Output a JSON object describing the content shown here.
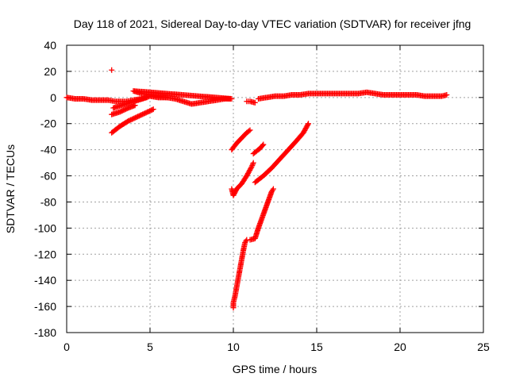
{
  "chart_data": {
    "type": "scatter",
    "title": "Day 118 of 2021, Sidereal Day-to-day VTEC variation (SDTVAR) for receiver jfng",
    "xlabel": "GPS time / hours",
    "ylabel": "SDTVAR / TECUs",
    "xlim": [
      0,
      25
    ],
    "ylim": [
      -180,
      40
    ],
    "x_ticks": [
      "0",
      "5",
      "10",
      "15",
      "20",
      "25"
    ],
    "y_ticks": [
      "40",
      "20",
      "0",
      "-20",
      "-40",
      "-60",
      "-80",
      "-100",
      "-120",
      "-140",
      "-160",
      "-180"
    ],
    "grid": true,
    "marker": "+",
    "color": "#ff0000",
    "series": [
      {
        "values": [
          [
            0.0,
            0
          ],
          [
            0.5,
            -1
          ],
          [
            1.0,
            -1
          ],
          [
            1.5,
            -2
          ],
          [
            2.0,
            -2
          ],
          [
            2.5,
            -2
          ],
          [
            2.9,
            -3
          ],
          [
            3.2,
            -3
          ],
          [
            3.6,
            -3
          ],
          [
            4.0,
            -2
          ],
          [
            4.5,
            -1
          ],
          [
            5.0,
            1
          ],
          [
            5.5,
            0
          ],
          [
            6.0,
            0
          ],
          [
            6.5,
            -1
          ],
          [
            7.0,
            -3
          ],
          [
            7.5,
            -5
          ],
          [
            8.0,
            -4
          ],
          [
            8.5,
            -3
          ],
          [
            9.0,
            -2
          ],
          [
            9.5,
            -1
          ],
          [
            9.9,
            -1
          ],
          [
            4.0,
            5
          ],
          [
            4.5,
            3
          ],
          [
            5.0,
            2
          ],
          [
            5.5,
            1
          ],
          [
            6.0,
            0
          ]
        ]
      },
      {
        "values": [
          [
            2.7,
            21
          ]
        ]
      },
      {
        "values": [
          [
            2.7,
            -13
          ],
          [
            3.2,
            -11
          ],
          [
            3.7,
            -8
          ],
          [
            4.1,
            -6
          ]
        ]
      },
      {
        "values": [
          [
            2.8,
            -8
          ],
          [
            3.3,
            -6
          ],
          [
            3.8,
            -4
          ],
          [
            4.3,
            -2
          ],
          [
            4.8,
            0
          ]
        ]
      },
      {
        "values": [
          [
            2.7,
            -27
          ],
          [
            3.2,
            -22
          ],
          [
            3.7,
            -18
          ],
          [
            4.2,
            -15
          ],
          [
            4.7,
            -12
          ],
          [
            5.2,
            -9
          ]
        ]
      },
      {
        "values": [
          [
            10.8,
            -3
          ],
          [
            11.0,
            -3
          ],
          [
            11.3,
            -4
          ]
        ]
      },
      {
        "values": [
          [
            11.5,
            -1
          ],
          [
            12.0,
            0
          ],
          [
            12.5,
            1
          ],
          [
            13.0,
            1
          ],
          [
            13.5,
            2
          ],
          [
            14.0,
            2
          ],
          [
            14.5,
            3
          ],
          [
            15.0,
            3
          ],
          [
            15.5,
            3
          ],
          [
            16.0,
            3
          ],
          [
            16.5,
            3
          ],
          [
            17.0,
            3
          ],
          [
            17.5,
            3
          ],
          [
            18.0,
            4
          ],
          [
            18.5,
            3
          ],
          [
            19.0,
            2
          ],
          [
            19.5,
            2
          ],
          [
            20.0,
            2
          ],
          [
            20.5,
            2
          ],
          [
            21.0,
            2
          ],
          [
            21.5,
            1
          ],
          [
            22.0,
            1
          ],
          [
            22.5,
            1
          ],
          [
            22.8,
            2
          ]
        ]
      },
      {
        "values": [
          [
            9.9,
            -40
          ],
          [
            10.2,
            -35
          ],
          [
            10.5,
            -31
          ],
          [
            10.8,
            -27
          ],
          [
            11.0,
            -25
          ]
        ]
      },
      {
        "values": [
          [
            9.9,
            -70
          ],
          [
            10.0,
            -75
          ],
          [
            10.2,
            -70
          ],
          [
            10.5,
            -66
          ],
          [
            10.8,
            -60
          ],
          [
            11.1,
            -53
          ],
          [
            11.2,
            -50
          ]
        ]
      },
      {
        "values": [
          [
            11.2,
            -43
          ],
          [
            11.4,
            -41
          ],
          [
            11.6,
            -39
          ],
          [
            11.8,
            -36
          ]
        ]
      },
      {
        "values": [
          [
            11.3,
            -65
          ],
          [
            11.8,
            -60
          ],
          [
            12.3,
            -54
          ],
          [
            12.8,
            -47
          ],
          [
            13.3,
            -40
          ],
          [
            13.8,
            -33
          ],
          [
            14.2,
            -27
          ],
          [
            14.5,
            -20
          ]
        ]
      },
      {
        "values": [
          [
            10.0,
            -161
          ],
          [
            10.0,
            -157
          ],
          [
            10.1,
            -152
          ],
          [
            10.2,
            -145
          ],
          [
            10.3,
            -138
          ],
          [
            10.4,
            -131
          ],
          [
            10.5,
            -124
          ],
          [
            10.6,
            -117
          ],
          [
            10.7,
            -111
          ],
          [
            10.8,
            -109
          ]
        ]
      },
      {
        "values": [
          [
            11.0,
            -109
          ],
          [
            11.3,
            -108
          ],
          [
            11.5,
            -100
          ],
          [
            11.7,
            -93
          ],
          [
            11.9,
            -86
          ],
          [
            12.1,
            -79
          ],
          [
            12.3,
            -72
          ],
          [
            12.4,
            -70
          ]
        ]
      }
    ]
  }
}
